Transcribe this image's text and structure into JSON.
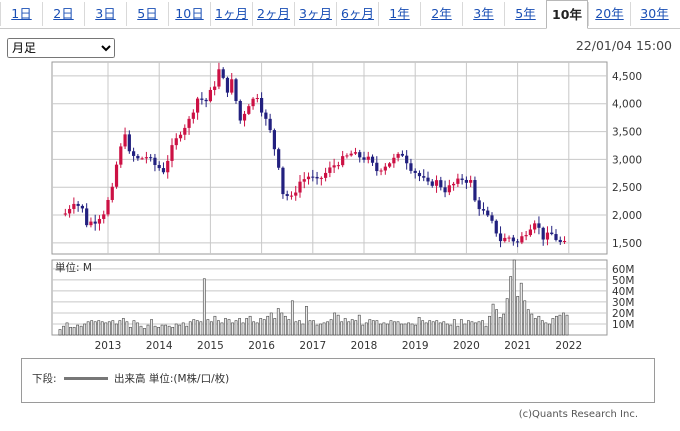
{
  "tabs": [
    {
      "label": "1日",
      "active": false
    },
    {
      "label": "2日",
      "active": false
    },
    {
      "label": "3日",
      "active": false
    },
    {
      "label": "5日",
      "active": false
    },
    {
      "label": "10日",
      "active": false
    },
    {
      "label": "1ヶ月",
      "active": false
    },
    {
      "label": "2ヶ月",
      "active": false
    },
    {
      "label": "3ヶ月",
      "active": false
    },
    {
      "label": "6ヶ月",
      "active": false
    },
    {
      "label": "1年",
      "active": false
    },
    {
      "label": "2年",
      "active": false
    },
    {
      "label": "3年",
      "active": false
    },
    {
      "label": "5年",
      "active": false
    },
    {
      "label": "10年",
      "active": true
    },
    {
      "label": "20年",
      "active": false
    },
    {
      "label": "30年",
      "active": false
    }
  ],
  "period_select": {
    "selected": "月足"
  },
  "timestamp": "22/01/04 15:00",
  "colors": {
    "up": "#cc1144",
    "down": "#22207f",
    "volume": "#e9e9e9",
    "volume_edge": "#444444",
    "grid": "#c8c8c8"
  },
  "chart_data": [
    {
      "type": "candlestick",
      "title": "",
      "x_tick_labels": [
        "2013",
        "2014",
        "2015",
        "2016",
        "2017",
        "2018",
        "2019",
        "2020",
        "2021",
        "2022"
      ],
      "y_tick_labels": [
        "1,500",
        "2,000",
        "2,500",
        "3,000",
        "3,500",
        "4,000",
        "4,500"
      ],
      "ylim": [
        1300,
        4750
      ],
      "grid": true,
      "anchors": [
        [
          "2012-03",
          2030
        ],
        [
          "2012-05",
          2250
        ],
        [
          "2012-07",
          2100
        ],
        [
          "2012-08",
          1850
        ],
        [
          "2012-10",
          1900
        ],
        [
          "2012-12",
          2050
        ],
        [
          "2013-02",
          2450
        ],
        [
          "2013-03",
          2900
        ],
        [
          "2013-05",
          3500
        ],
        [
          "2013-06",
          3100
        ],
        [
          "2013-08",
          3000
        ],
        [
          "2013-10",
          3050
        ],
        [
          "2013-12",
          2900
        ],
        [
          "2014-02",
          2800
        ],
        [
          "2014-04",
          3200
        ],
        [
          "2014-06",
          3500
        ],
        [
          "2014-08",
          3700
        ],
        [
          "2014-10",
          4100
        ],
        [
          "2014-12",
          4050
        ],
        [
          "2015-02",
          4350
        ],
        [
          "2015-03",
          4600
        ],
        [
          "2015-05",
          4250
        ],
        [
          "2015-06",
          4400
        ],
        [
          "2015-08",
          3700
        ],
        [
          "2015-10",
          4000
        ],
        [
          "2015-12",
          4150
        ],
        [
          "2016-01",
          3900
        ],
        [
          "2016-03",
          3500
        ],
        [
          "2016-05",
          2900
        ],
        [
          "2016-06",
          2400
        ],
        [
          "2016-08",
          2300
        ],
        [
          "2016-10",
          2600
        ],
        [
          "2016-12",
          2700
        ],
        [
          "2017-02",
          2600
        ],
        [
          "2017-04",
          2750
        ],
        [
          "2017-06",
          2900
        ],
        [
          "2017-08",
          3000
        ],
        [
          "2017-10",
          3100
        ],
        [
          "2017-12",
          3050
        ],
        [
          "2018-02",
          3000
        ],
        [
          "2018-04",
          2800
        ],
        [
          "2018-06",
          2900
        ],
        [
          "2018-08",
          3000
        ],
        [
          "2018-10",
          3100
        ],
        [
          "2018-12",
          2850
        ],
        [
          "2019-02",
          2700
        ],
        [
          "2019-04",
          2550
        ],
        [
          "2019-06",
          2600
        ],
        [
          "2019-08",
          2450
        ],
        [
          "2019-10",
          2550
        ],
        [
          "2019-12",
          2650
        ],
        [
          "2020-02",
          2600
        ],
        [
          "2020-03",
          2250
        ],
        [
          "2020-05",
          2050
        ],
        [
          "2020-07",
          1850
        ],
        [
          "2020-09",
          1550
        ],
        [
          "2020-11",
          1600
        ],
        [
          "2021-01",
          1500
        ],
        [
          "2021-03",
          1700
        ],
        [
          "2021-05",
          1900
        ],
        [
          "2021-07",
          1600
        ],
        [
          "2021-09",
          1650
        ],
        [
          "2021-11",
          1500
        ],
        [
          "2021-12",
          1480
        ]
      ]
    },
    {
      "type": "bar",
      "title": "",
      "unit_label": "単位: M",
      "y_tick_labels": [
        "10M",
        "20M",
        "30M",
        "40M",
        "50M",
        "60M"
      ],
      "ylim": [
        0,
        68
      ],
      "values": [
        5,
        8,
        11,
        7,
        7,
        9,
        8,
        10,
        12,
        13,
        12,
        13,
        12,
        11,
        12,
        13,
        10,
        13,
        15,
        12,
        7,
        13,
        11,
        8,
        6,
        9,
        14,
        8,
        7,
        9,
        9,
        8,
        7,
        10,
        9,
        11,
        8,
        12,
        14,
        13,
        12,
        51,
        14,
        12,
        17,
        13,
        11,
        15,
        14,
        11,
        13,
        15,
        11,
        15,
        17,
        12,
        11,
        15,
        14,
        17,
        20,
        15,
        24,
        20,
        17,
        14,
        31,
        12,
        13,
        10,
        26,
        13,
        13,
        9,
        10,
        11,
        12,
        14,
        20,
        18,
        12,
        15,
        12,
        14,
        13,
        18,
        9,
        11,
        14,
        13,
        13,
        10,
        11,
        10,
        13,
        12,
        12,
        10,
        10,
        11,
        10,
        9,
        16,
        13,
        11,
        13,
        12,
        13,
        11,
        12,
        10,
        9,
        14,
        8,
        14,
        10,
        13,
        12,
        11,
        12,
        13,
        8,
        17,
        28,
        23,
        16,
        19,
        33,
        53,
        68,
        35,
        47,
        31,
        23,
        19,
        15,
        17,
        13,
        11,
        10,
        15,
        17,
        18,
        20,
        18
      ]
    }
  ],
  "legend": {
    "prefix": "下段:",
    "text": "出来高 単位:(M株/口/枚)"
  },
  "copyright": "(c)Quants Research Inc."
}
